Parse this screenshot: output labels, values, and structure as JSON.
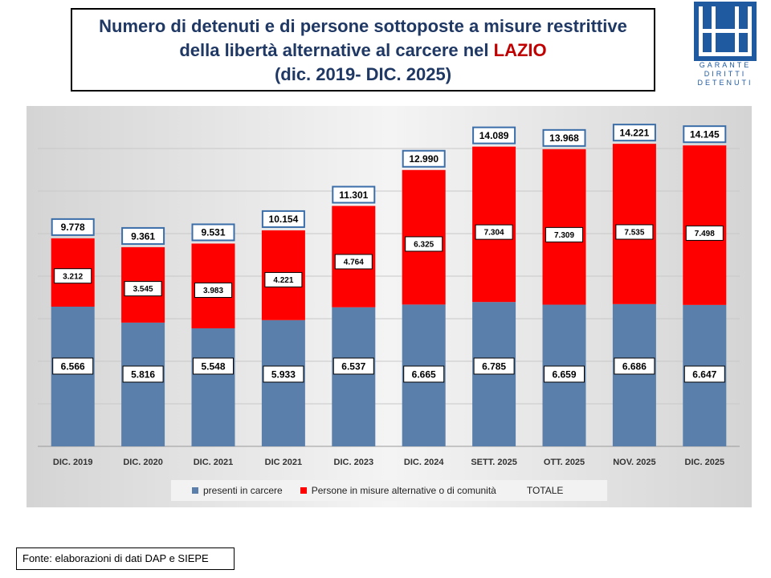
{
  "header": {
    "title_line1": "Numero di detenuti e di persone sottoposte a misure restrittive",
    "title_line2_prefix": "della libertà alternative al carcere nel ",
    "title_line2_highlight": "LAZIO",
    "title_line3": "(dic. 2019- DIC. 2025)"
  },
  "logo": {
    "line1": "GARANTE",
    "line2": "DIRITTI",
    "line3": "DETENUTI"
  },
  "colors": {
    "series_carcere": "#5b7fab",
    "series_alternative": "#ff0000",
    "title": "#1f3864",
    "highlight": "#c00000"
  },
  "chart_data": {
    "type": "bar",
    "stacked": true,
    "categories": [
      "DIC. 2019",
      "DIC. 2020",
      "DIC. 2021",
      "DIC 2021",
      "DIC. 2023",
      "DIC. 2024",
      "SETT. 2025",
      "OTT. 2025",
      "NOV. 2025",
      "DIC. 2025"
    ],
    "series": [
      {
        "name": "presenti in carcere",
        "values": [
          6566,
          5816,
          5548,
          5933,
          6537,
          6665,
          6785,
          6659,
          6686,
          6647
        ],
        "labels": [
          "6.566",
          "5.816",
          "5.548",
          "5.933",
          "6.537",
          "6.665",
          "6.785",
          "6.659",
          "6.686",
          "6.647"
        ]
      },
      {
        "name": "Persone in misure alternative o di comunità",
        "values": [
          3212,
          3545,
          3983,
          4221,
          4764,
          6325,
          7304,
          7309,
          7535,
          7498
        ],
        "labels": [
          "3.212",
          "3.545",
          "3.983",
          "4.221",
          "4.764",
          "6.325",
          "7.304",
          "7.309",
          "7.535",
          "7.498"
        ]
      }
    ],
    "totals": {
      "name": "TOTALE",
      "values": [
        9778,
        9361,
        9531,
        10154,
        11301,
        12990,
        14089,
        13968,
        14221,
        14145
      ],
      "labels": [
        "9.778",
        "9.361",
        "9.531",
        "10.154",
        "11.301",
        "12.990",
        "14.089",
        "13.968",
        "14.221",
        "14.145"
      ]
    },
    "ylim": [
      0,
      16000
    ],
    "legend_position": "bottom"
  },
  "source": "Fonte: elaborazioni di dati DAP e SIEPE"
}
